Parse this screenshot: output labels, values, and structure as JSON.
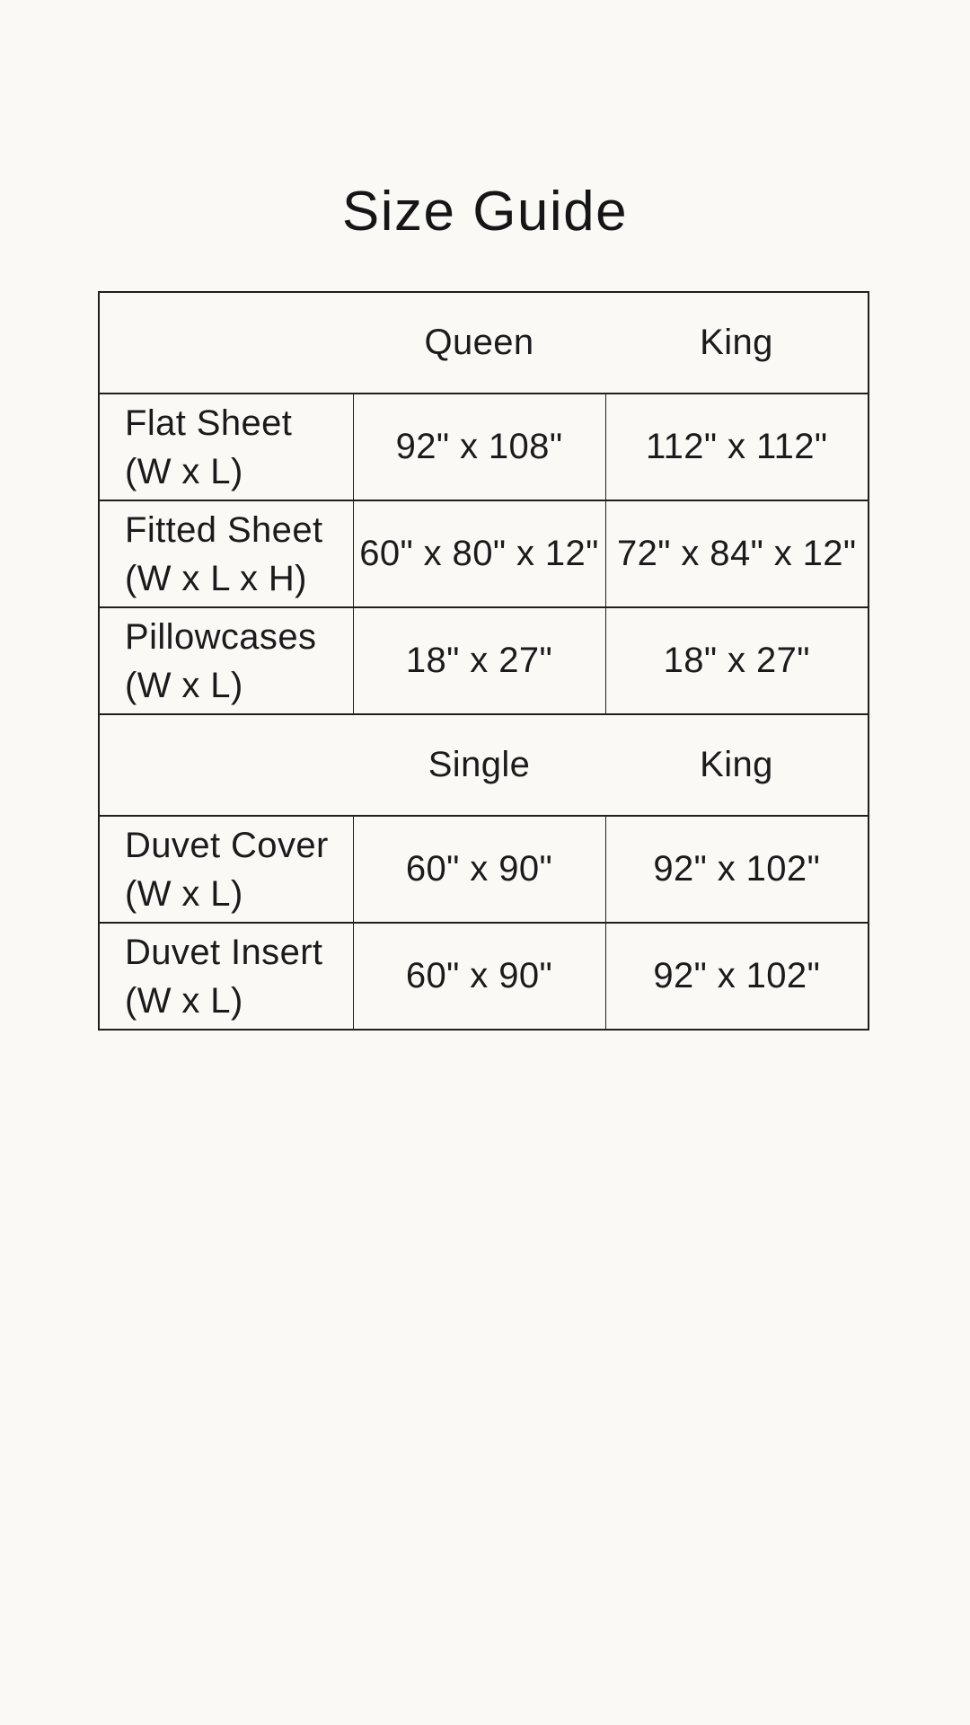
{
  "page": {
    "title": "Size Guide",
    "background_color": "#faf9f6",
    "text_color": "#1b1b1b",
    "border_color": "#1f1f1f"
  },
  "size_table": {
    "sections": [
      {
        "header": {
          "col2": "Queen",
          "col3": "King"
        },
        "rows": [
          {
            "item": "Flat Sheet",
            "dims": "(W x L)",
            "col2": "92\" x 108\"",
            "col3": "112\" x 112\""
          },
          {
            "item": "Fitted Sheet",
            "dims": "(W x L x H)",
            "col2": "60\" x 80\" x 12\"",
            "col3": "72\" x 84\" x 12\""
          },
          {
            "item": "Pillowcases",
            "dims": "(W x L)",
            "col2": "18\" x 27\"",
            "col3": "18\" x 27\""
          }
        ]
      },
      {
        "header": {
          "col2": "Single",
          "col3": "King"
        },
        "rows": [
          {
            "item": "Duvet Cover",
            "dims": "(W x L)",
            "col2": "60\" x 90\"",
            "col3": "92\" x 102\""
          },
          {
            "item": "Duvet Insert",
            "dims": "(W x L)",
            "col2": "60\" x 90\"",
            "col3": "92\" x 102\""
          }
        ]
      }
    ]
  }
}
